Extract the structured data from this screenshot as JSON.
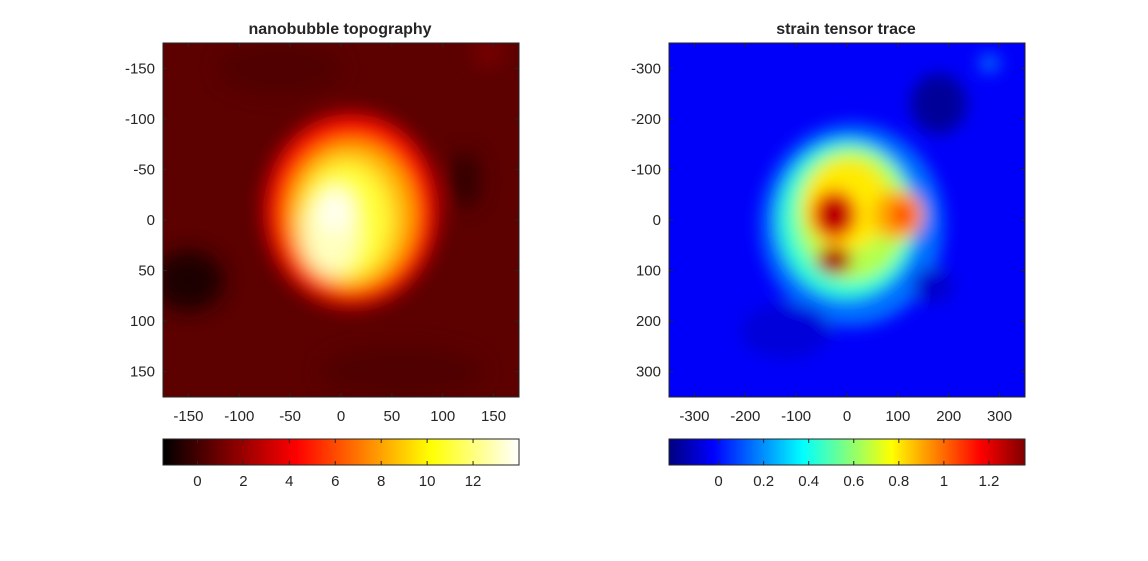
{
  "chart_data": [
    {
      "type": "heatmap",
      "title": "nanobubble topography",
      "colormap": "hot",
      "xlim": [
        -175,
        175
      ],
      "ylim": [
        -175,
        175
      ],
      "y_reversed": true,
      "x_ticks": [
        -150,
        -100,
        -50,
        0,
        50,
        100,
        150
      ],
      "x_tick_labels": [
        "-150",
        "-100",
        "-50",
        "0",
        "50",
        "100",
        "150"
      ],
      "y_ticks": [
        -150,
        -100,
        -50,
        0,
        50,
        100,
        150
      ],
      "y_tick_labels": [
        "-150",
        "-100",
        "-50",
        "0",
        "50",
        "100",
        "150"
      ],
      "colorbar": {
        "location": "south",
        "clim": [
          -1.5,
          14
        ],
        "ticks": [
          0,
          2,
          4,
          6,
          8,
          10,
          12
        ],
        "tick_labels": [
          "0",
          "2",
          "4",
          "6",
          "8",
          "10",
          "12"
        ]
      },
      "features": [
        {
          "x": 0,
          "y": 0,
          "value": 13.5,
          "note": "central bubble peak"
        },
        {
          "x": -10,
          "y": 30,
          "value": 13.0
        },
        {
          "x": 40,
          "y": -60,
          "value": 9.0
        },
        {
          "x": -150,
          "y": 60,
          "value": -1.0
        },
        {
          "x": 120,
          "y": -40,
          "value": -0.5
        },
        {
          "x": 145,
          "y": -165,
          "value": 1.2
        }
      ]
    },
    {
      "type": "heatmap",
      "title": "strain tensor trace",
      "colormap": "jet",
      "xlim": [
        -350,
        350
      ],
      "ylim": [
        -350,
        350
      ],
      "y_reversed": true,
      "x_ticks": [
        -300,
        -200,
        -100,
        0,
        100,
        200,
        300
      ],
      "x_tick_labels": [
        "-300",
        "-200",
        "-100",
        "0",
        "100",
        "200",
        "300"
      ],
      "y_ticks": [
        -300,
        -200,
        -100,
        0,
        100,
        200,
        300
      ],
      "y_tick_labels": [
        "-300",
        "-200",
        "-100",
        "0",
        "100",
        "200",
        "300"
      ],
      "colorbar": {
        "location": "south",
        "clim": [
          -0.22,
          1.36
        ],
        "ticks": [
          0,
          0.2,
          0.4,
          0.6,
          0.8,
          1,
          1.2
        ],
        "tick_labels": [
          "0",
          "0.2",
          "0.4",
          "0.6",
          "0.8",
          "1",
          "1.2"
        ]
      },
      "features": [
        {
          "x": -25,
          "y": -10,
          "value": 1.25,
          "note": "upper strain peak"
        },
        {
          "x": -25,
          "y": 80,
          "value": 1.35,
          "note": "lower strain peak"
        },
        {
          "x": 110,
          "y": -10,
          "value": 1.05
        },
        {
          "x": 0,
          "y": -100,
          "value": 0.65
        },
        {
          "x": 180,
          "y": -230,
          "value": -0.15
        },
        {
          "x": 170,
          "y": 130,
          "value": -0.05
        },
        {
          "x": -120,
          "y": 220,
          "value": -0.05
        }
      ]
    }
  ]
}
